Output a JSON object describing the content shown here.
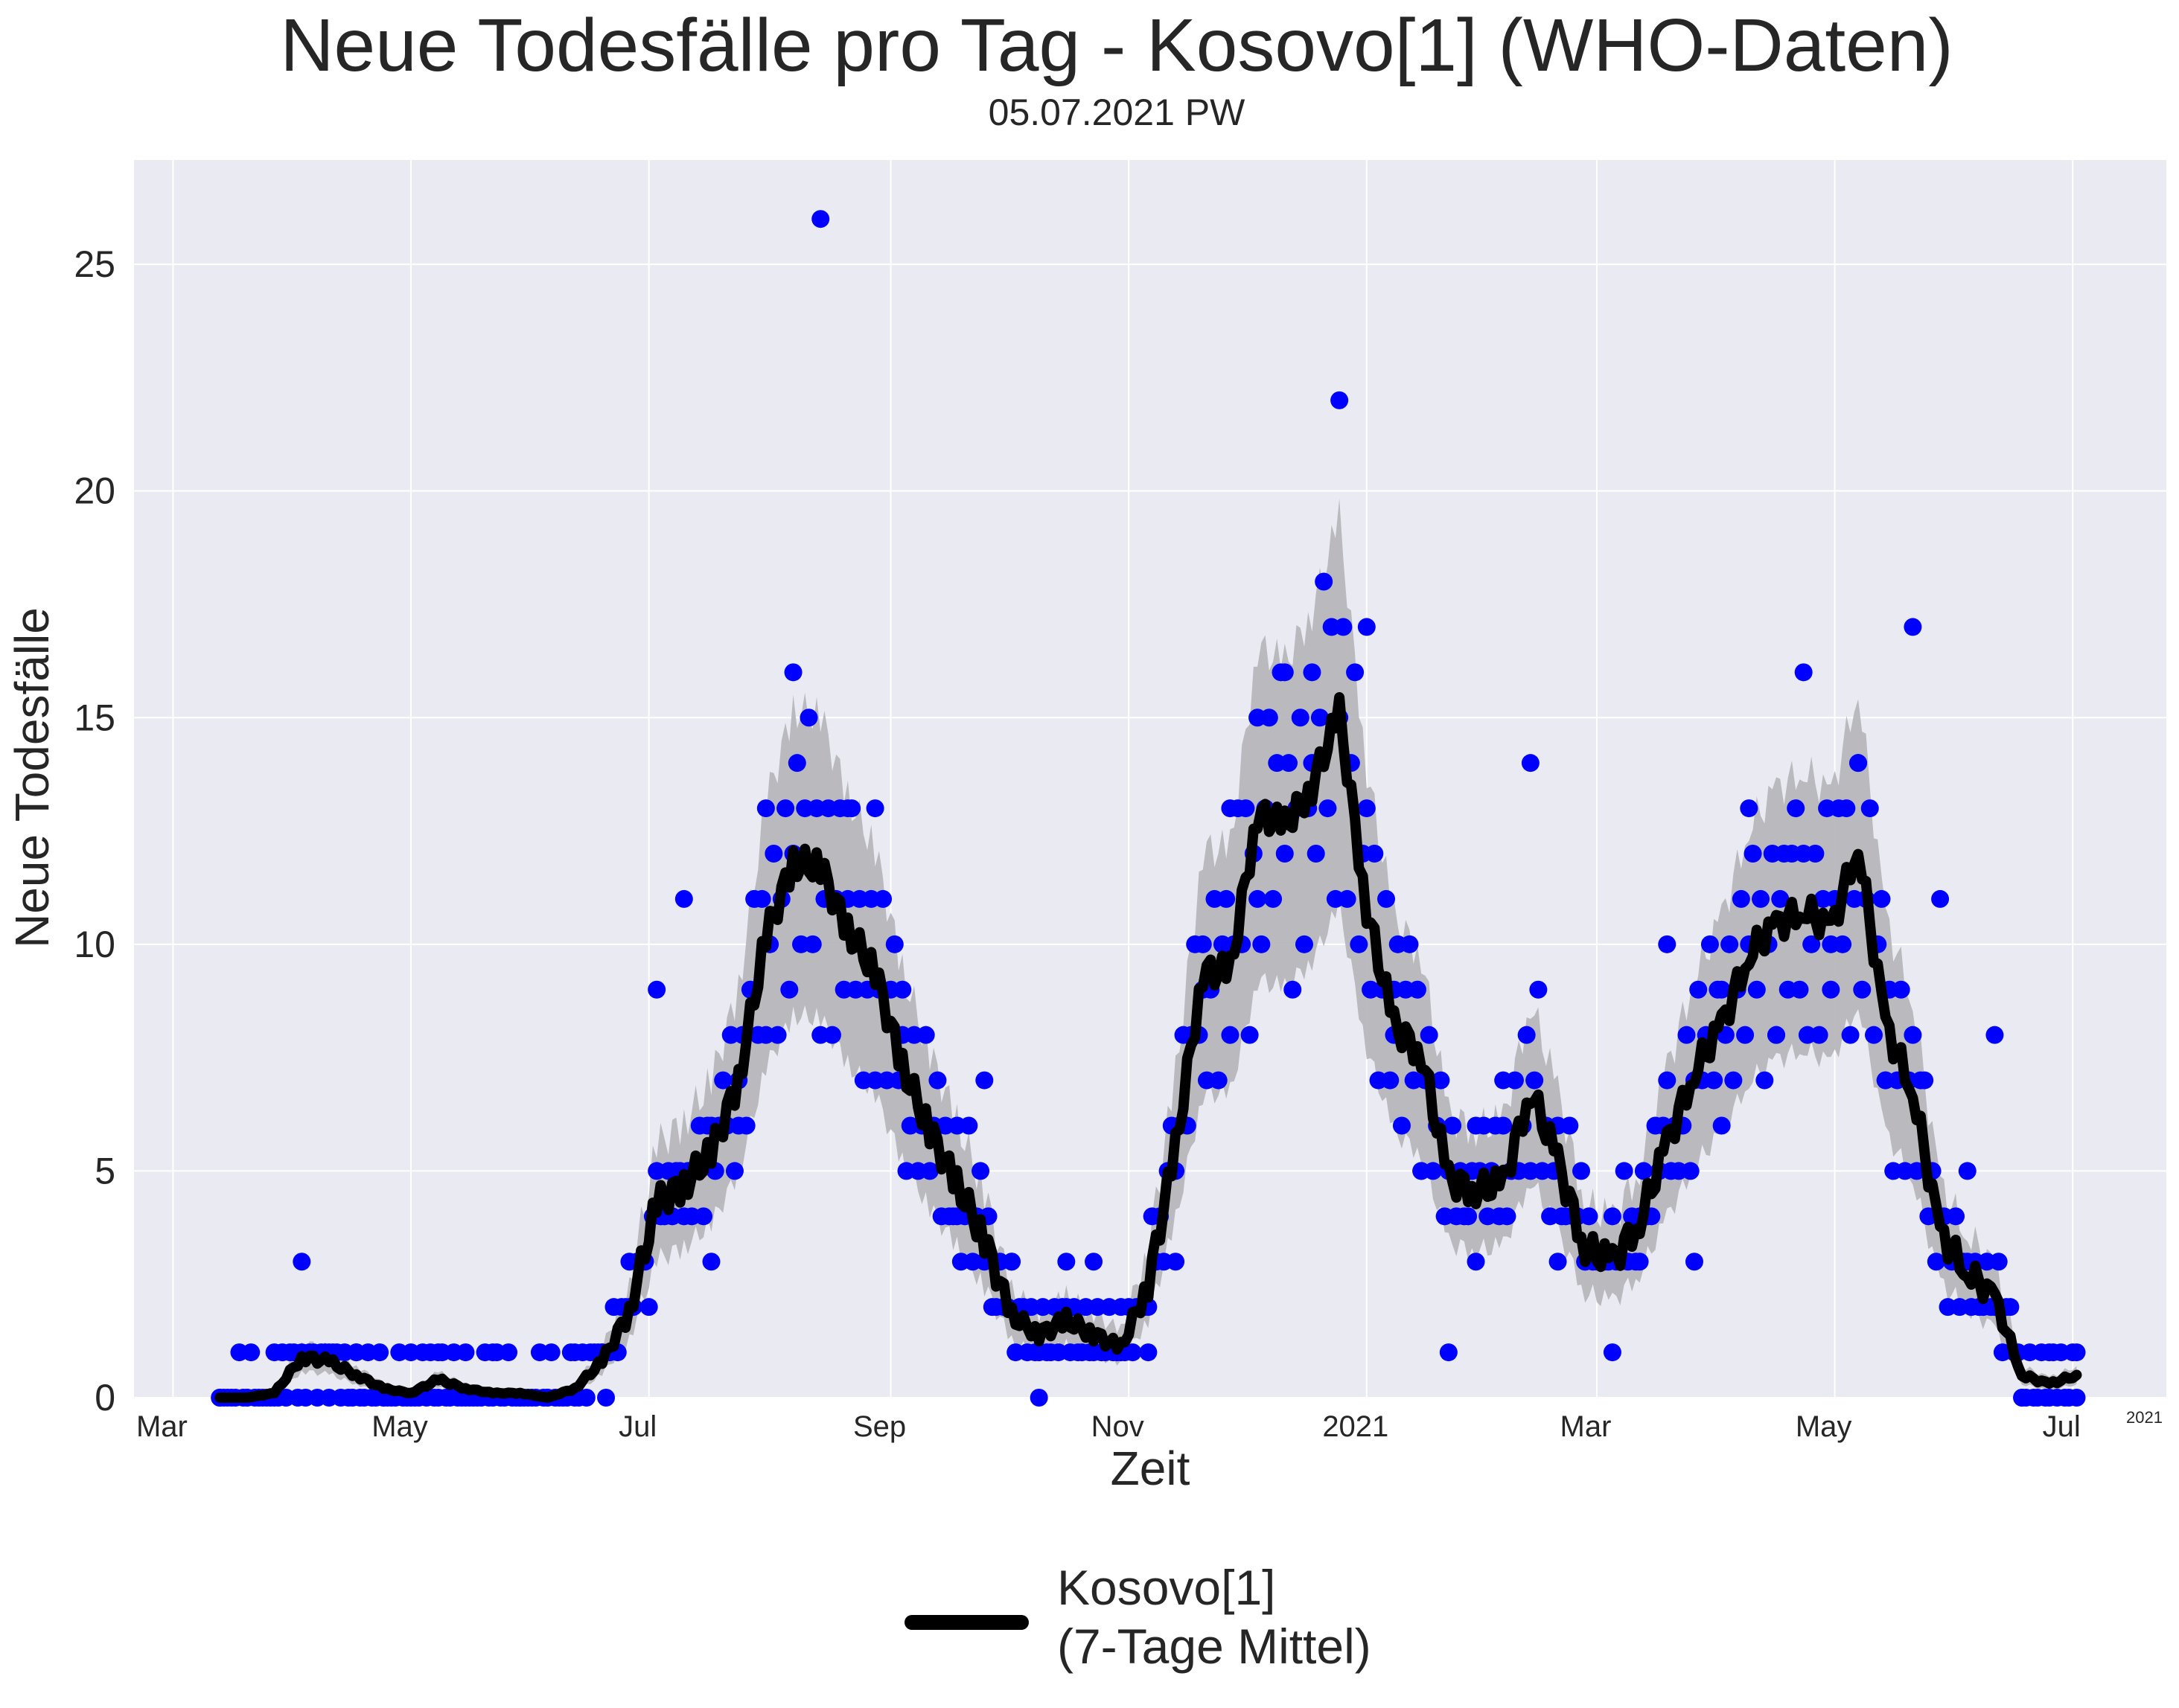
{
  "chart_data": {
    "type": "scatter",
    "title": "Neue Todesfälle pro Tag - Kosovo[1] (WHO-Daten)",
    "subtitle": "05.07.2021 PW",
    "xlabel": "Zeit",
    "ylabel": "Neue Todesfälle",
    "x_tick_labels": [
      "Mar",
      "May",
      "Jul",
      "Sep",
      "Nov",
      "2021",
      "Mar",
      "May",
      "Jul"
    ],
    "x_offset_label": "2021",
    "y_tick_labels": [
      "0",
      "5",
      "10",
      "15",
      "20",
      "25"
    ],
    "ylim": [
      0,
      27.3
    ],
    "xlim": [
      "2020-02-20",
      "2021-07-25"
    ],
    "grid": true,
    "legend": {
      "entries": [
        "Kosovo[1]",
        "(7-Tage Mittel)"
      ],
      "placement": "bottom-center"
    },
    "colors": {
      "points": "#0000ff",
      "mean_line": "#000000",
      "band": "#b4b4b8",
      "plot_bg": "#eaeaf2",
      "grid": "#ffffff"
    },
    "series": [
      {
        "name": "Kosovo[1]",
        "kind": "daily",
        "x": [
          "2020-03-13",
          "2020-03-20",
          "2020-03-27",
          "2020-04-03",
          "2020-04-10",
          "2020-04-17",
          "2020-04-24",
          "2020-05-01",
          "2020-05-08",
          "2020-05-15",
          "2020-05-22",
          "2020-05-29",
          "2020-06-05",
          "2020-06-12",
          "2020-06-19",
          "2020-06-26",
          "2020-07-03",
          "2020-07-10",
          "2020-07-17",
          "2020-07-24",
          "2020-07-31",
          "2020-08-07",
          "2020-08-14",
          "2020-08-21",
          "2020-08-28",
          "2020-09-04",
          "2020-09-11",
          "2020-09-18",
          "2020-09-25",
          "2020-10-02",
          "2020-10-09",
          "2020-10-16",
          "2020-10-23",
          "2020-10-30",
          "2020-11-06",
          "2020-11-13",
          "2020-11-20",
          "2020-11-27",
          "2020-12-04",
          "2020-12-11",
          "2020-12-18",
          "2020-12-25",
          "2021-01-01",
          "2021-01-08",
          "2021-01-15",
          "2021-01-22",
          "2021-01-29",
          "2021-02-05",
          "2021-02-12",
          "2021-02-19",
          "2021-02-26",
          "2021-03-05",
          "2021-03-12",
          "2021-03-19",
          "2021-03-26",
          "2021-04-02",
          "2021-04-09",
          "2021-04-16",
          "2021-04-23",
          "2021-04-30",
          "2021-05-07",
          "2021-05-14",
          "2021-05-21",
          "2021-05-28",
          "2021-06-04",
          "2021-06-11",
          "2021-06-18",
          "2021-06-25",
          "2021-07-02"
        ],
        "y": [
          0,
          0,
          1,
          3,
          1,
          1,
          0,
          0,
          1,
          0,
          1,
          0,
          0,
          1,
          1,
          3,
          9,
          11,
          3,
          6,
          8,
          16,
          26,
          13,
          13,
          9,
          6,
          4,
          7,
          3,
          0,
          2,
          3,
          2,
          1,
          3,
          9,
          13,
          11,
          16,
          14,
          22,
          17,
          8,
          5,
          1,
          6,
          7,
          14,
          3,
          3,
          1,
          4,
          10,
          3,
          9,
          13,
          8,
          16,
          10,
          14,
          7,
          17,
          11,
          5,
          8,
          0,
          1,
          1
        ]
      },
      {
        "name": "Kosovo[1] (7-Tage Mittel)",
        "kind": "mean",
        "x": [
          "2020-03-13",
          "2020-03-20",
          "2020-03-27",
          "2020-04-03",
          "2020-04-10",
          "2020-04-17",
          "2020-04-24",
          "2020-05-01",
          "2020-05-08",
          "2020-05-15",
          "2020-05-22",
          "2020-05-29",
          "2020-06-05",
          "2020-06-12",
          "2020-06-19",
          "2020-06-26",
          "2020-07-03",
          "2020-07-10",
          "2020-07-17",
          "2020-07-24",
          "2020-07-31",
          "2020-08-07",
          "2020-08-14",
          "2020-08-21",
          "2020-08-28",
          "2020-09-04",
          "2020-09-11",
          "2020-09-18",
          "2020-09-25",
          "2020-10-02",
          "2020-10-09",
          "2020-10-16",
          "2020-10-23",
          "2020-10-30",
          "2020-11-06",
          "2020-11-13",
          "2020-11-20",
          "2020-11-27",
          "2020-12-04",
          "2020-12-11",
          "2020-12-18",
          "2020-12-25",
          "2021-01-01",
          "2021-01-08",
          "2021-01-15",
          "2021-01-22",
          "2021-01-29",
          "2021-02-05",
          "2021-02-12",
          "2021-02-19",
          "2021-02-26",
          "2021-03-05",
          "2021-03-12",
          "2021-03-19",
          "2021-03-26",
          "2021-04-02",
          "2021-04-09",
          "2021-04-16",
          "2021-04-23",
          "2021-04-30",
          "2021-05-07",
          "2021-05-14",
          "2021-05-21",
          "2021-05-28",
          "2021-06-04",
          "2021-06-11",
          "2021-06-18",
          "2021-06-25",
          "2021-07-02"
        ],
        "y": [
          0,
          0,
          0.1,
          0.9,
          0.8,
          0.5,
          0.2,
          0.1,
          0.4,
          0.2,
          0.1,
          0.1,
          0,
          0.2,
          0.8,
          1.9,
          4.3,
          4.7,
          5.4,
          7,
          10.2,
          11.8,
          11.7,
          10.3,
          9.4,
          7.3,
          5.9,
          4.7,
          3.5,
          1.8,
          1.4,
          1.7,
          1.4,
          1.1,
          2.5,
          5.5,
          9.4,
          9.4,
          12.9,
          12.6,
          13.5,
          15.1,
          10.8,
          8.2,
          7.6,
          4.8,
          4.6,
          4.7,
          6.8,
          5.2,
          3.3,
          3,
          3.9,
          5.6,
          7.2,
          8.2,
          9.8,
          10.4,
          10.8,
          10.3,
          12.2,
          8.2,
          6.8,
          3.6,
          2.8,
          2.2,
          0.5,
          0.3,
          0.5
        ]
      }
    ]
  }
}
